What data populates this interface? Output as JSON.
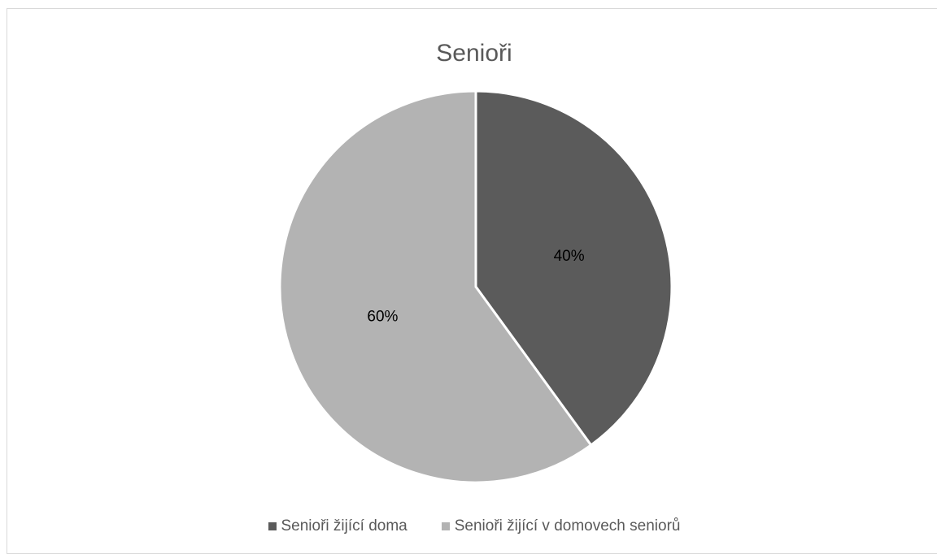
{
  "chart_data": {
    "type": "pie",
    "title": "Senioři",
    "slices": [
      {
        "name": "Senioři žijící doma",
        "value": 40,
        "label": "40%",
        "color": "#5b5b5b"
      },
      {
        "name": "Senioři žijící v domovech seniorů",
        "value": 60,
        "label": "60%",
        "color": "#b3b3b3"
      }
    ],
    "legend_position": "bottom"
  }
}
